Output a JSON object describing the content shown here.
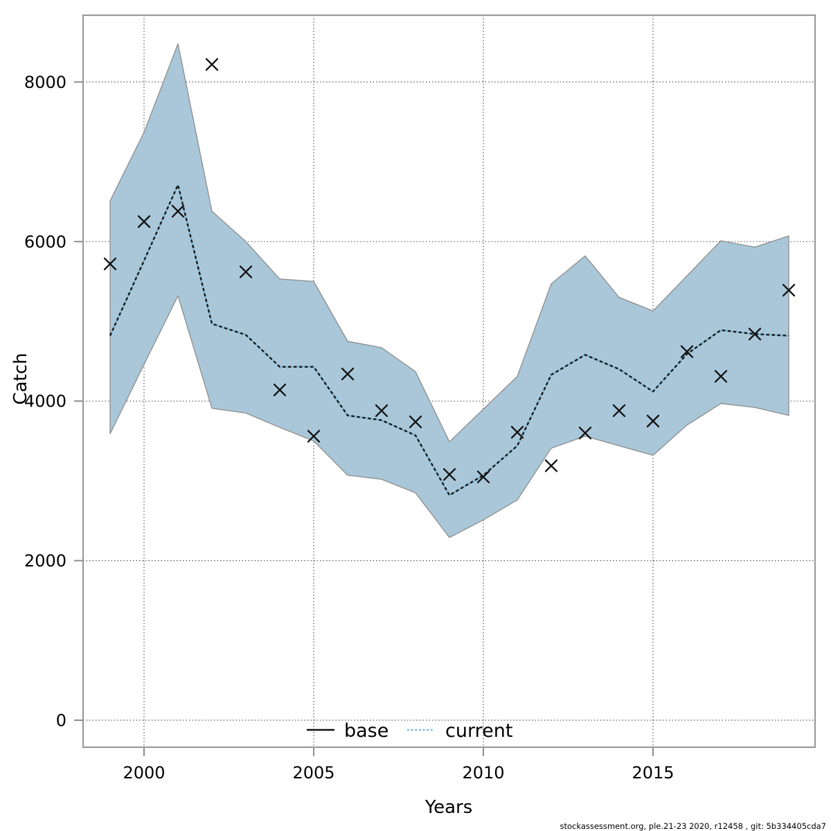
{
  "chart_data": {
    "type": "line",
    "title": "",
    "xlabel": "Years",
    "ylabel": "Catch",
    "x": [
      1999,
      2000,
      2001,
      2002,
      2003,
      2004,
      2005,
      2006,
      2007,
      2008,
      2009,
      2010,
      2011,
      2012,
      2013,
      2014,
      2015,
      2016,
      2017,
      2018,
      2019
    ],
    "series": [
      {
        "name": "current",
        "style": "dotted",
        "color": "#7fb9d9",
        "overlay_dash_color": "#161616",
        "values": [
          4820,
          5760,
          6710,
          4970,
          4830,
          4430,
          4430,
          3820,
          3760,
          3570,
          2820,
          3070,
          3440,
          4330,
          4580,
          4400,
          4120,
          4590,
          4890,
          4840,
          4820
        ]
      },
      {
        "name": "observed-catch",
        "style": "scatter",
        "marker": "x",
        "color": "#111111",
        "values": [
          5720,
          6250,
          6380,
          8220,
          5620,
          4140,
          3560,
          4340,
          3880,
          3740,
          3080,
          3050,
          3610,
          3190,
          3600,
          3880,
          3750,
          4620,
          4310,
          4840,
          5390
        ]
      },
      {
        "name": "confidence-upper",
        "role": "band-upper",
        "values": [
          6510,
          7370,
          8480,
          6380,
          6000,
          5530,
          5500,
          4750,
          4670,
          4370,
          3490,
          3900,
          4310,
          5470,
          5820,
          5300,
          5130,
          5570,
          6010,
          5930,
          6070
        ]
      },
      {
        "name": "confidence-lower",
        "role": "band-lower",
        "values": [
          3590,
          4460,
          5320,
          3910,
          3850,
          3670,
          3500,
          3070,
          3020,
          2850,
          2290,
          2510,
          2760,
          3410,
          3560,
          3440,
          3320,
          3700,
          3970,
          3920,
          3820
        ]
      }
    ],
    "band_fill": "#a9c7d9",
    "band_stroke": "#8c8c8c",
    "x_ticks": [
      2000,
      2005,
      2010,
      2015
    ],
    "y_ticks": [
      0,
      2000,
      4000,
      6000,
      8000
    ],
    "xlim": [
      1998.2,
      2019.8
    ],
    "ylim": [
      -340,
      8840
    ],
    "grid": "dotted",
    "legend_position": "bottom-center-inside"
  },
  "legend": {
    "items": [
      {
        "label": "base",
        "style": "solid",
        "color": "#111111"
      },
      {
        "label": "current",
        "style": "dotted",
        "color": "#7fb9d9"
      }
    ]
  },
  "footer": {
    "text": "stockassessment.org, ple.21-23 2020, r12458 , git: 5b334405cda7"
  },
  "colors": {
    "frame": "#9a9a9a",
    "grid": "#555555",
    "tick": "#8c8c8c",
    "band_fill": "#a9c7d9",
    "band_stroke": "#8c8c8c",
    "current_line_blue": "#7fb9d9",
    "line_dash_black": "#161616",
    "marker_black": "#111111",
    "text": "#000000"
  }
}
